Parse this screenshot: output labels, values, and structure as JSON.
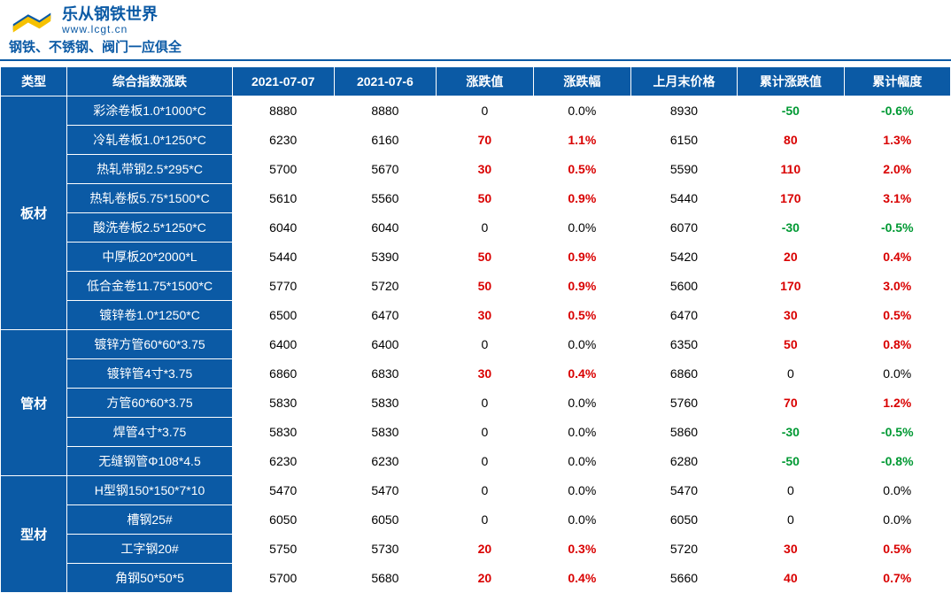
{
  "brand": {
    "title": "乐从钢铁世界",
    "url": "www.lcgt.cn",
    "tagline": "钢铁、不锈钢、阀门一应俱全"
  },
  "colors": {
    "primary": "#0b5aa5",
    "positive": "#d90000",
    "negative": "#009933",
    "neutral": "#000000",
    "border": "#ffffff",
    "background": "#ffffff"
  },
  "table": {
    "columns": [
      "类型",
      "综合指数涨跌",
      "2021-07-07",
      "2021-07-6",
      "涨跌值",
      "涨跌幅",
      "上月末价格",
      "累计涨跌值",
      "累计幅度"
    ],
    "groups": [
      {
        "category": "板材",
        "rows": [
          {
            "name": "彩涂卷板1.0*1000*C",
            "d1": "8880",
            "d2": "8880",
            "chg": "0",
            "pct": "0.0%",
            "lm": "8930",
            "cum": "-50",
            "cpt": "-0.6%"
          },
          {
            "name": "冷轧卷板1.0*1250*C",
            "d1": "6230",
            "d2": "6160",
            "chg": "70",
            "pct": "1.1%",
            "lm": "6150",
            "cum": "80",
            "cpt": "1.3%"
          },
          {
            "name": "热轧带钢2.5*295*C",
            "d1": "5700",
            "d2": "5670",
            "chg": "30",
            "pct": "0.5%",
            "lm": "5590",
            "cum": "110",
            "cpt": "2.0%"
          },
          {
            "name": "热轧卷板5.75*1500*C",
            "d1": "5610",
            "d2": "5560",
            "chg": "50",
            "pct": "0.9%",
            "lm": "5440",
            "cum": "170",
            "cpt": "3.1%"
          },
          {
            "name": "酸洗卷板2.5*1250*C",
            "d1": "6040",
            "d2": "6040",
            "chg": "0",
            "pct": "0.0%",
            "lm": "6070",
            "cum": "-30",
            "cpt": "-0.5%"
          },
          {
            "name": "中厚板20*2000*L",
            "d1": "5440",
            "d2": "5390",
            "chg": "50",
            "pct": "0.9%",
            "lm": "5420",
            "cum": "20",
            "cpt": "0.4%"
          },
          {
            "name": "低合金卷11.75*1500*C",
            "d1": "5770",
            "d2": "5720",
            "chg": "50",
            "pct": "0.9%",
            "lm": "5600",
            "cum": "170",
            "cpt": "3.0%"
          },
          {
            "name": "镀锌卷1.0*1250*C",
            "d1": "6500",
            "d2": "6470",
            "chg": "30",
            "pct": "0.5%",
            "lm": "6470",
            "cum": "30",
            "cpt": "0.5%"
          }
        ]
      },
      {
        "category": "管材",
        "rows": [
          {
            "name": "镀锌方管60*60*3.75",
            "d1": "6400",
            "d2": "6400",
            "chg": "0",
            "pct": "0.0%",
            "lm": "6350",
            "cum": "50",
            "cpt": "0.8%"
          },
          {
            "name": "镀锌管4寸*3.75",
            "d1": "6860",
            "d2": "6830",
            "chg": "30",
            "pct": "0.4%",
            "lm": "6860",
            "cum": "0",
            "cpt": "0.0%"
          },
          {
            "name": "方管60*60*3.75",
            "d1": "5830",
            "d2": "5830",
            "chg": "0",
            "pct": "0.0%",
            "lm": "5760",
            "cum": "70",
            "cpt": "1.2%"
          },
          {
            "name": "焊管4寸*3.75",
            "d1": "5830",
            "d2": "5830",
            "chg": "0",
            "pct": "0.0%",
            "lm": "5860",
            "cum": "-30",
            "cpt": "-0.5%"
          },
          {
            "name": "无缝钢管Φ108*4.5",
            "d1": "6230",
            "d2": "6230",
            "chg": "0",
            "pct": "0.0%",
            "lm": "6280",
            "cum": "-50",
            "cpt": "-0.8%"
          }
        ]
      },
      {
        "category": "型材",
        "rows": [
          {
            "name": "H型钢150*150*7*10",
            "d1": "5470",
            "d2": "5470",
            "chg": "0",
            "pct": "0.0%",
            "lm": "5470",
            "cum": "0",
            "cpt": "0.0%"
          },
          {
            "name": "槽钢25#",
            "d1": "6050",
            "d2": "6050",
            "chg": "0",
            "pct": "0.0%",
            "lm": "6050",
            "cum": "0",
            "cpt": "0.0%"
          },
          {
            "name": "工字钢20#",
            "d1": "5750",
            "d2": "5730",
            "chg": "20",
            "pct": "0.3%",
            "lm": "5720",
            "cum": "30",
            "cpt": "0.5%"
          },
          {
            "name": "角钢50*50*5",
            "d1": "5700",
            "d2": "5680",
            "chg": "20",
            "pct": "0.4%",
            "lm": "5660",
            "cum": "40",
            "cpt": "0.7%"
          }
        ]
      }
    ]
  }
}
